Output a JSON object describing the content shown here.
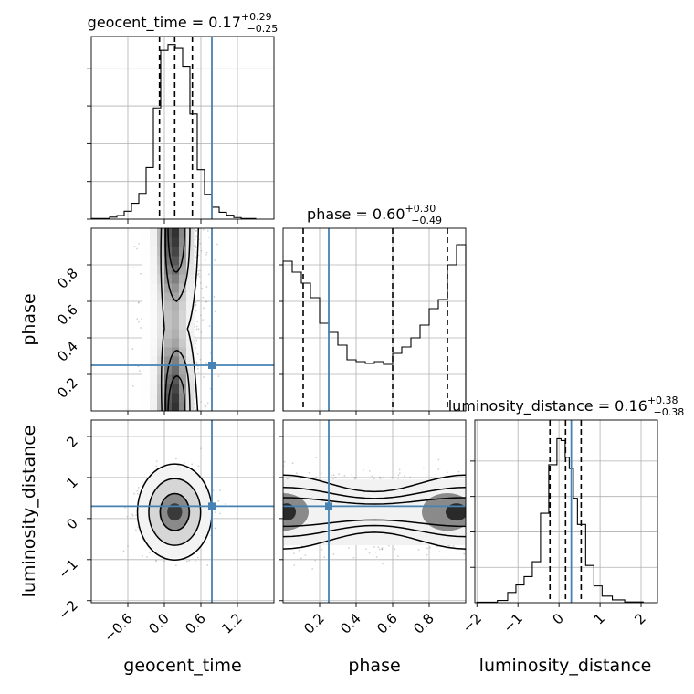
{
  "chart_data": {
    "type": "corner",
    "parameters": [
      "geocent_time",
      "phase",
      "luminosity_distance"
    ],
    "truths": {
      "geocent_time": 0.78,
      "phase": 0.25,
      "luminosity_distance": 0.3
    },
    "truth_color": "#4682b4",
    "axis_labels": {
      "x": [
        "geocent_time",
        "phase",
        "luminosity_distance"
      ],
      "y": [
        "phase",
        "luminosity_distance"
      ]
    },
    "marginals": [
      {
        "param": "geocent_time",
        "title_label": "geocent_time = 0.17",
        "title_plus": "+0.29",
        "title_minus": "−0.25",
        "quantiles": [
          -0.08,
          0.17,
          0.46
        ],
        "xlim": [
          -1.2,
          1.8
        ],
        "ylim": [
          0,
          920
        ],
        "bins": [
          [
            -1.2,
            -0.9,
            3
          ],
          [
            -0.9,
            -0.78,
            10
          ],
          [
            -0.78,
            -0.66,
            18
          ],
          [
            -0.66,
            -0.54,
            40
          ],
          [
            -0.54,
            -0.42,
            80
          ],
          [
            -0.42,
            -0.3,
            130
          ],
          [
            -0.3,
            -0.18,
            260
          ],
          [
            -0.18,
            -0.06,
            560
          ],
          [
            -0.06,
            0.06,
            850
          ],
          [
            0.06,
            0.18,
            880
          ],
          [
            0.18,
            0.3,
            860
          ],
          [
            0.3,
            0.42,
            770
          ],
          [
            0.42,
            0.54,
            530
          ],
          [
            0.54,
            0.66,
            250
          ],
          [
            0.66,
            0.78,
            125
          ],
          [
            0.78,
            0.9,
            60
          ],
          [
            0.9,
            1.02,
            35
          ],
          [
            1.02,
            1.14,
            20
          ],
          [
            1.14,
            1.26,
            8
          ],
          [
            1.26,
            1.5,
            3
          ]
        ],
        "xticks": [
          -0.6,
          0.0,
          0.6,
          1.2
        ],
        "xtick_labels": [
          "−0.6",
          "0.0",
          "0.6",
          "1.2"
        ],
        "yticks": [
          0,
          190,
          380,
          570,
          760
        ]
      },
      {
        "param": "phase",
        "title_label": "phase = 0.60",
        "title_plus": "+0.30",
        "title_minus": "−0.49",
        "quantiles": [
          0.11,
          0.6,
          0.9
        ],
        "xlim": [
          0,
          1
        ],
        "ylim": [
          0,
          1000
        ],
        "bins": [
          [
            0,
            0.05,
            820
          ],
          [
            0.05,
            0.1,
            760
          ],
          [
            0.1,
            0.15,
            700
          ],
          [
            0.15,
            0.2,
            620
          ],
          [
            0.2,
            0.25,
            480
          ],
          [
            0.25,
            0.3,
            430
          ],
          [
            0.3,
            0.35,
            360
          ],
          [
            0.35,
            0.4,
            280
          ],
          [
            0.4,
            0.45,
            270
          ],
          [
            0.45,
            0.5,
            260
          ],
          [
            0.5,
            0.55,
            270
          ],
          [
            0.55,
            0.6,
            255
          ],
          [
            0.6,
            0.65,
            315
          ],
          [
            0.65,
            0.7,
            350
          ],
          [
            0.7,
            0.75,
            400
          ],
          [
            0.75,
            0.8,
            470
          ],
          [
            0.8,
            0.85,
            560
          ],
          [
            0.85,
            0.9,
            610
          ],
          [
            0.9,
            0.95,
            800
          ],
          [
            0.95,
            1,
            910
          ]
        ],
        "xticks": [
          0.2,
          0.4,
          0.6,
          0.8
        ],
        "xtick_labels": [
          "0.2",
          "0.4",
          "0.6",
          "0.8"
        ],
        "yticks": [
          200,
          400,
          600,
          800
        ]
      },
      {
        "param": "luminosity_distance",
        "title_label": "luminosity_distance = 0.16",
        "title_plus": "+0.38",
        "title_minus": "−0.38",
        "quantiles": [
          -0.22,
          0.16,
          0.54
        ],
        "xlim": [
          -2.05,
          2.4
        ],
        "ylim": [
          0,
          980
        ],
        "bins": [
          [
            -2,
            -1.5,
            3
          ],
          [
            -1.5,
            -1.25,
            12
          ],
          [
            -1.25,
            -1.05,
            55
          ],
          [
            -1.05,
            -0.85,
            95
          ],
          [
            -0.85,
            -0.65,
            140
          ],
          [
            -0.65,
            -0.45,
            220
          ],
          [
            -0.45,
            -0.25,
            480
          ],
          [
            -0.25,
            -0.05,
            740
          ],
          [
            -0.05,
            0.05,
            880
          ],
          [
            0.05,
            0.15,
            870
          ],
          [
            0.15,
            0.25,
            780
          ],
          [
            0.25,
            0.35,
            720
          ],
          [
            0.35,
            0.45,
            560
          ],
          [
            0.45,
            0.65,
            420
          ],
          [
            0.65,
            0.85,
            200
          ],
          [
            0.85,
            1.05,
            90
          ],
          [
            1.05,
            1.3,
            35
          ],
          [
            1.3,
            1.6,
            15
          ],
          [
            1.6,
            2.05,
            4
          ]
        ],
        "xticks": [
          -2,
          -1,
          0,
          1,
          2
        ],
        "xtick_labels": [
          "−2",
          "−1",
          "0",
          "1",
          "2"
        ],
        "yticks": [
          190,
          380,
          570,
          760
        ]
      }
    ],
    "joints": [
      {
        "x": "geocent_time",
        "y": "phase",
        "xlim": [
          -1.2,
          1.8
        ],
        "ylim": [
          0,
          1
        ],
        "yticks": [
          0.2,
          0.4,
          0.6,
          0.8
        ],
        "ytick_labels": [
          "0.2",
          "0.4",
          "0.6",
          "0.8"
        ],
        "xticks": [
          -0.6,
          0.0,
          0.6,
          1.2
        ]
      },
      {
        "x": "geocent_time",
        "y": "luminosity_distance",
        "xlim": [
          -1.2,
          1.8
        ],
        "ylim": [
          -2.05,
          2.4
        ],
        "yticks": [
          -2,
          -1,
          0,
          1,
          2
        ],
        "ytick_labels": [
          "−2",
          "−1",
          "0",
          "1",
          "2"
        ],
        "xticks": [
          -0.6,
          0.0,
          0.6,
          1.2
        ]
      },
      {
        "x": "phase",
        "y": "luminosity_distance",
        "xlim": [
          0,
          1
        ],
        "ylim": [
          -2.05,
          2.4
        ],
        "yticks": [
          -2,
          -1,
          0,
          1,
          2
        ],
        "xticks": [
          0.2,
          0.4,
          0.6,
          0.8
        ]
      }
    ]
  }
}
